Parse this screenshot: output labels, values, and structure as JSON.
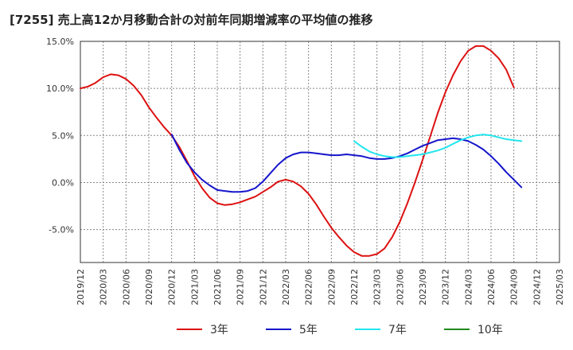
{
  "chart_data": {
    "type": "line",
    "title": "[7255]  売上高12か月移動合計の対前年同期増減率の平均値の推移",
    "xlabel": "",
    "ylabel": "",
    "ylim": [
      -8.5,
      15
    ],
    "yticks": [
      15,
      10,
      5,
      0,
      -5
    ],
    "ytick_labels": [
      "15.0%",
      "10.0%",
      "5.0%",
      "0.0%",
      "-5.0%"
    ],
    "xtick_labels": [
      "2019/12",
      "2020/03",
      "2020/06",
      "2020/09",
      "2020/12",
      "2021/03",
      "2021/06",
      "2021/09",
      "2021/12",
      "2022/03",
      "2022/06",
      "2022/09",
      "2022/12",
      "2023/03",
      "2023/06",
      "2023/09",
      "2023/12",
      "2024/03",
      "2024/06",
      "2024/09",
      "2024/12",
      "2025/03"
    ],
    "grid": true,
    "legend_position": "bottom",
    "series": [
      {
        "name": "3年",
        "color": "#dd1111",
        "start_index": 0,
        "values": [
          10.0,
          10.2,
          10.6,
          11.2,
          11.5,
          11.4,
          11.0,
          10.3,
          9.3,
          8.0,
          6.9,
          5.9,
          5.0,
          3.8,
          2.3,
          0.7,
          -0.6,
          -1.6,
          -2.2,
          -2.4,
          -2.3,
          -2.1,
          -1.8,
          -1.5,
          -1.0,
          -0.5,
          0.1,
          0.3,
          0.1,
          -0.4,
          -1.2,
          -2.3,
          -3.6,
          -4.8,
          -5.8,
          -6.7,
          -7.4,
          -7.8,
          -7.8,
          -7.6,
          -7.0,
          -5.8,
          -4.2,
          -2.2,
          0.0,
          2.4,
          4.9,
          7.4,
          9.6,
          11.4,
          12.9,
          14.0,
          14.5,
          14.5,
          14.0,
          13.2,
          12.0,
          10.1
        ]
      },
      {
        "name": "5年",
        "color": "#1515cc",
        "start_index": 12,
        "values": [
          5.1,
          3.5,
          2.1,
          1.1,
          0.3,
          -0.3,
          -0.8,
          -0.9,
          -1.0,
          -1.0,
          -0.9,
          -0.6,
          0.1,
          1.0,
          1.9,
          2.6,
          3.0,
          3.2,
          3.2,
          3.1,
          3.0,
          2.9,
          2.9,
          3.0,
          2.9,
          2.8,
          2.6,
          2.5,
          2.5,
          2.6,
          2.8,
          3.1,
          3.5,
          3.9,
          4.2,
          4.5,
          4.6,
          4.7,
          4.6,
          4.4,
          4.0,
          3.5,
          2.8,
          2.0,
          1.1,
          0.3,
          -0.5
        ]
      },
      {
        "name": "7年",
        "color": "#22e5ee",
        "start_index": 36,
        "values": [
          4.4,
          3.8,
          3.3,
          3.0,
          2.8,
          2.7,
          2.7,
          2.8,
          2.9,
          3.0,
          3.2,
          3.4,
          3.7,
          4.1,
          4.5,
          4.8,
          5.0,
          5.1,
          5.0,
          4.8,
          4.6,
          4.5,
          4.4
        ]
      },
      {
        "name": "10年",
        "color": "#1f8a1f",
        "start_index": 0,
        "values": []
      }
    ]
  }
}
